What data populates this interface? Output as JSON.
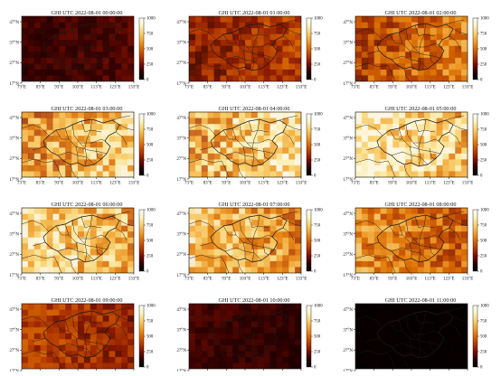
{
  "figure": {
    "variable": "GHI"
  },
  "colorbar": {
    "ticks": [
      0,
      250,
      500,
      750,
      1000
    ],
    "stops": [
      "#000000",
      "#2b0000",
      "#7a0e00",
      "#b33a00",
      "#d96a00",
      "#f0a030",
      "#f8d070",
      "#fdf4c0",
      "#ffffff"
    ]
  },
  "axes": {
    "lon_ticks": [
      "73°E",
      "83°E",
      "93°E",
      "103°E",
      "113°E",
      "123°E",
      "133°E"
    ],
    "lat_ticks": [
      "47°N",
      "37°N",
      "27°N",
      "17°N"
    ]
  },
  "chart_data": [
    {
      "type": "heatmap",
      "title": "GHI UTC 2022-08-01 00:00:00",
      "mean_ghi": 200,
      "clim": [
        0,
        1000
      ]
    },
    {
      "type": "heatmap",
      "title": "GHI UTC 2022-08-01 01:00:00",
      "mean_ghi": 400,
      "clim": [
        0,
        1000
      ]
    },
    {
      "type": "heatmap",
      "title": "GHI UTC 2022-08-01 02:00:00",
      "mean_ghi": 540,
      "clim": [
        0,
        1000
      ]
    },
    {
      "type": "heatmap",
      "title": "GHI UTC 2022-08-01 03:00:00",
      "mean_ghi": 740,
      "clim": [
        0,
        1000
      ]
    },
    {
      "type": "heatmap",
      "title": "GHI UTC 2022-08-01 04:00:00",
      "mean_ghi": 780,
      "clim": [
        0,
        1000
      ]
    },
    {
      "type": "heatmap",
      "title": "GHI UTC 2022-08-01 05:00:00",
      "mean_ghi": 780,
      "clim": [
        0,
        1000
      ]
    },
    {
      "type": "heatmap",
      "title": "GHI UTC 2022-08-01 06:00:00",
      "mean_ghi": 740,
      "clim": [
        0,
        1000
      ]
    },
    {
      "type": "heatmap",
      "title": "GHI UTC 2022-08-01 07:00:00",
      "mean_ghi": 680,
      "clim": [
        0,
        1000
      ]
    },
    {
      "type": "heatmap",
      "title": "GHI UTC 2022-08-01 08:00:00",
      "mean_ghi": 560,
      "clim": [
        0,
        1000
      ]
    },
    {
      "type": "heatmap",
      "title": "GHI UTC 2022-08-01 09:00:00",
      "mean_ghi": 380,
      "clim": [
        0,
        1000
      ]
    },
    {
      "type": "heatmap",
      "title": "GHI UTC 2022-08-01 10:00:00",
      "mean_ghi": 160,
      "clim": [
        0,
        1000
      ]
    },
    {
      "type": "heatmap",
      "title": "GHI UTC 2022-08-01 11:00:00",
      "mean_ghi": 25,
      "clim": [
        0,
        1000
      ]
    }
  ]
}
